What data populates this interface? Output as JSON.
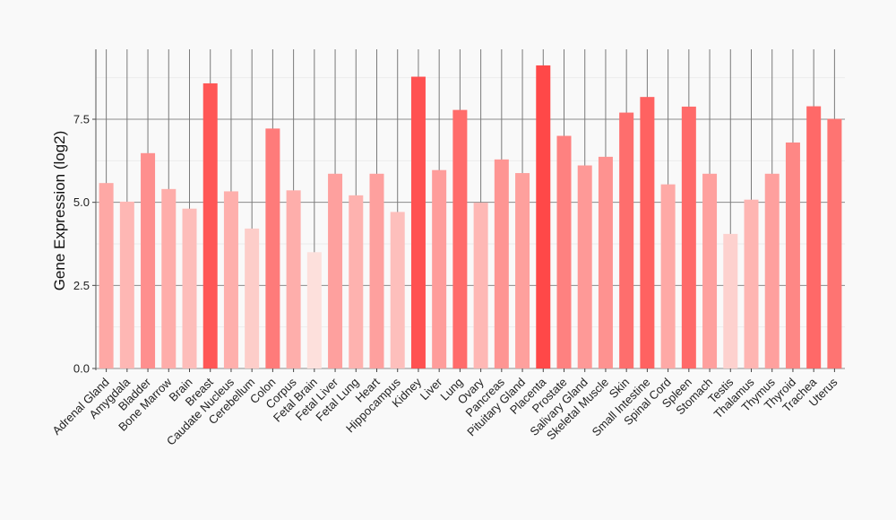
{
  "chart_data": {
    "type": "bar",
    "title": "",
    "xlabel": "",
    "ylabel": "Gene Expression (log2)",
    "ylim": [
      0,
      9.6
    ],
    "yticks": [
      0.0,
      2.5,
      5.0,
      7.5
    ],
    "ytick_labels": [
      "0.0",
      "2.5",
      "5.0",
      "7.5"
    ],
    "grid": true,
    "categories": [
      "Adrenal Gland",
      "Amygdala",
      "Bladder",
      "Bone Marrow",
      "Brain",
      "Breast",
      "Caudate Nucleus",
      "Cerebellum",
      "Colon",
      "Corpus",
      "Fetal Brain",
      "Fetal Liver",
      "Fetal Lung",
      "Heart",
      "Hippocampus",
      "Kidney",
      "Liver",
      "Lung",
      "Ovary",
      "Pancreas",
      "Pituitary Gland",
      "Placenta",
      "Prostate",
      "Salivary Gland",
      "Skeletal Muscle",
      "Skin",
      "Small Intestine",
      "Spinal Cord",
      "Spleen",
      "Stomach",
      "Testis",
      "Thalamus",
      "Thymus",
      "Thyroid",
      "Trachea",
      "Uterus"
    ],
    "values": [
      5.58,
      5.02,
      6.48,
      5.4,
      4.81,
      8.58,
      5.33,
      4.21,
      7.22,
      5.36,
      3.5,
      5.86,
      5.21,
      5.86,
      4.71,
      8.78,
      5.97,
      7.78,
      4.99,
      6.29,
      5.88,
      9.12,
      7.0,
      6.11,
      6.37,
      7.7,
      8.17,
      5.54,
      7.88,
      5.86,
      4.05,
      5.08,
      5.86,
      6.8,
      7.89,
      7.51
    ],
    "color_scale": {
      "low": "#fde0dc",
      "high": "#ff4848"
    }
  }
}
